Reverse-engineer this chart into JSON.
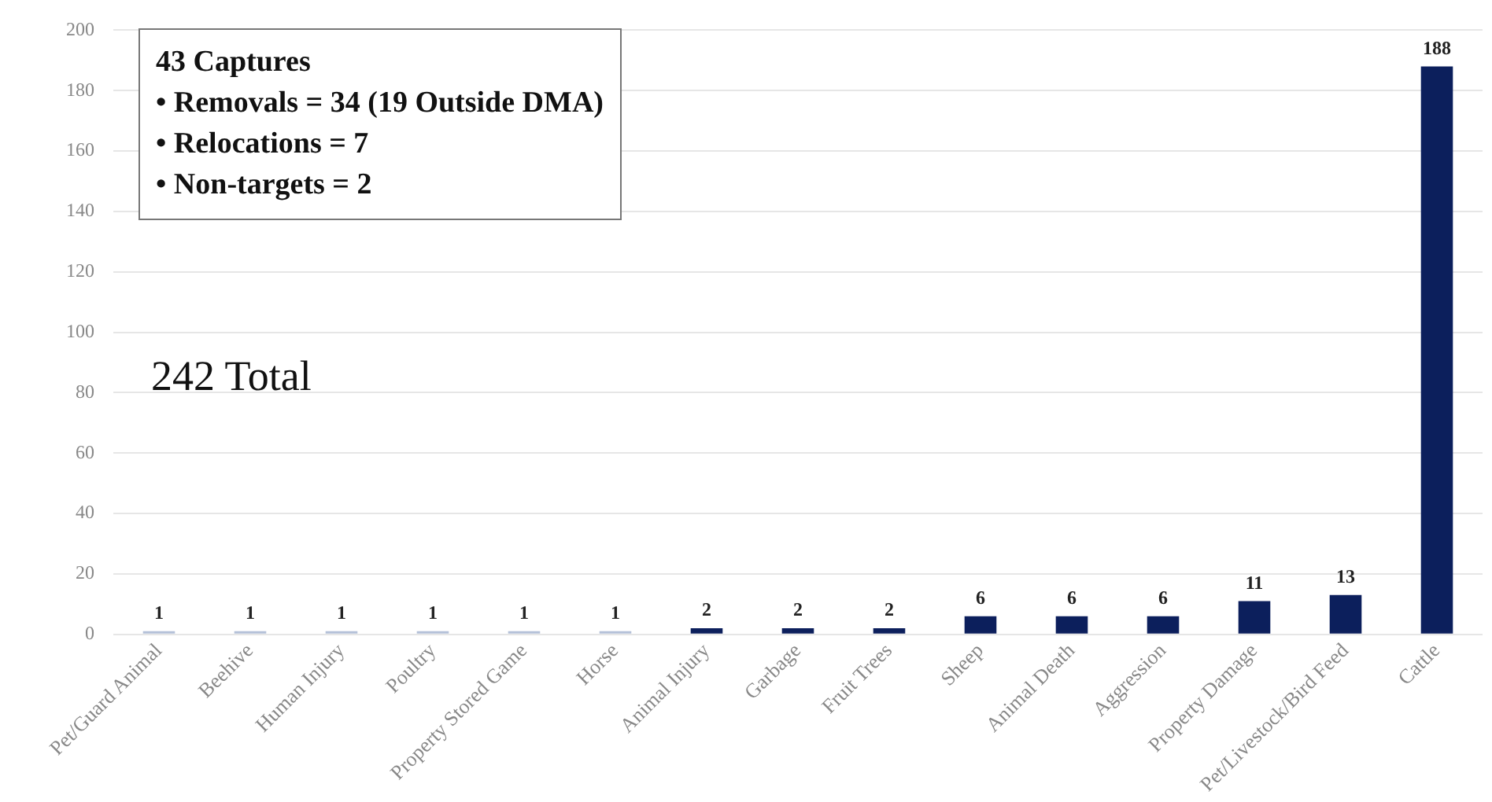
{
  "chart_data": {
    "type": "bar",
    "categories": [
      "Pet/Guard Animal",
      "Beehive",
      "Human Injury",
      "Poultry",
      "Property Stored Game",
      "Horse",
      "Animal Injury",
      "Garbage",
      "Fruit Trees",
      "Sheep",
      "Animal Death",
      "Aggression",
      "Property Damage",
      "Pet/Livestock/Bird Feed",
      "Cattle"
    ],
    "values": [
      1,
      1,
      1,
      1,
      1,
      1,
      2,
      2,
      2,
      6,
      6,
      6,
      11,
      13,
      188
    ],
    "colors": [
      "#b4c0d8",
      "#b4c0d8",
      "#b4c0d8",
      "#b4c0d8",
      "#b4c0d8",
      "#b4c0d8",
      "#0c1f5c",
      "#0c1f5c",
      "#0c1f5c",
      "#0c1f5c",
      "#0c1f5c",
      "#0c1f5c",
      "#0c1f5c",
      "#0c1f5c",
      "#0c1f5c"
    ],
    "ylim": [
      0,
      200
    ],
    "yticks": [
      0,
      20,
      40,
      60,
      80,
      100,
      120,
      140,
      160,
      180,
      200
    ],
    "grid": "y",
    "data_labels": true,
    "annotations": [
      "43 Captures\n• Removals = 34 (19 Outside DMA)\n• Relocations = 7\n• Non-targets = 2",
      "242 Total"
    ]
  }
}
